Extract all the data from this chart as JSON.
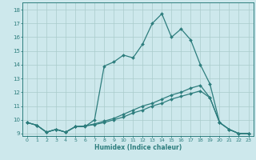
{
  "xlabel": "Humidex (Indice chaleur)",
  "xlim": [
    -0.5,
    23.5
  ],
  "ylim": [
    8.8,
    18.5
  ],
  "xticks": [
    0,
    1,
    2,
    3,
    4,
    5,
    6,
    7,
    8,
    9,
    10,
    11,
    12,
    13,
    14,
    15,
    16,
    17,
    18,
    19,
    20,
    21,
    22,
    23
  ],
  "yticks": [
    9,
    10,
    11,
    12,
    13,
    14,
    15,
    16,
    17,
    18
  ],
  "bg_color": "#cde8ec",
  "grid_color": "#aacccc",
  "line_color": "#2d7d7d",
  "line1_y": [
    9.8,
    9.6,
    9.1,
    9.3,
    9.1,
    9.5,
    9.5,
    10.0,
    13.9,
    14.2,
    14.7,
    14.5,
    15.5,
    17.0,
    17.7,
    16.0,
    16.6,
    15.8,
    14.0,
    12.6,
    9.8,
    9.3,
    9.0,
    9.0
  ],
  "line2_y": [
    9.8,
    9.6,
    9.1,
    9.3,
    9.1,
    9.5,
    9.55,
    9.65,
    9.8,
    10.0,
    10.2,
    10.5,
    10.7,
    11.0,
    11.2,
    11.5,
    11.7,
    11.9,
    12.1,
    11.6,
    9.8,
    9.3,
    9.0,
    9.0
  ],
  "line3_y": [
    9.8,
    9.6,
    9.1,
    9.3,
    9.1,
    9.5,
    9.55,
    9.7,
    9.9,
    10.1,
    10.4,
    10.7,
    11.0,
    11.2,
    11.5,
    11.8,
    12.0,
    12.3,
    12.5,
    11.6,
    9.8,
    9.3,
    9.0,
    9.0
  ]
}
